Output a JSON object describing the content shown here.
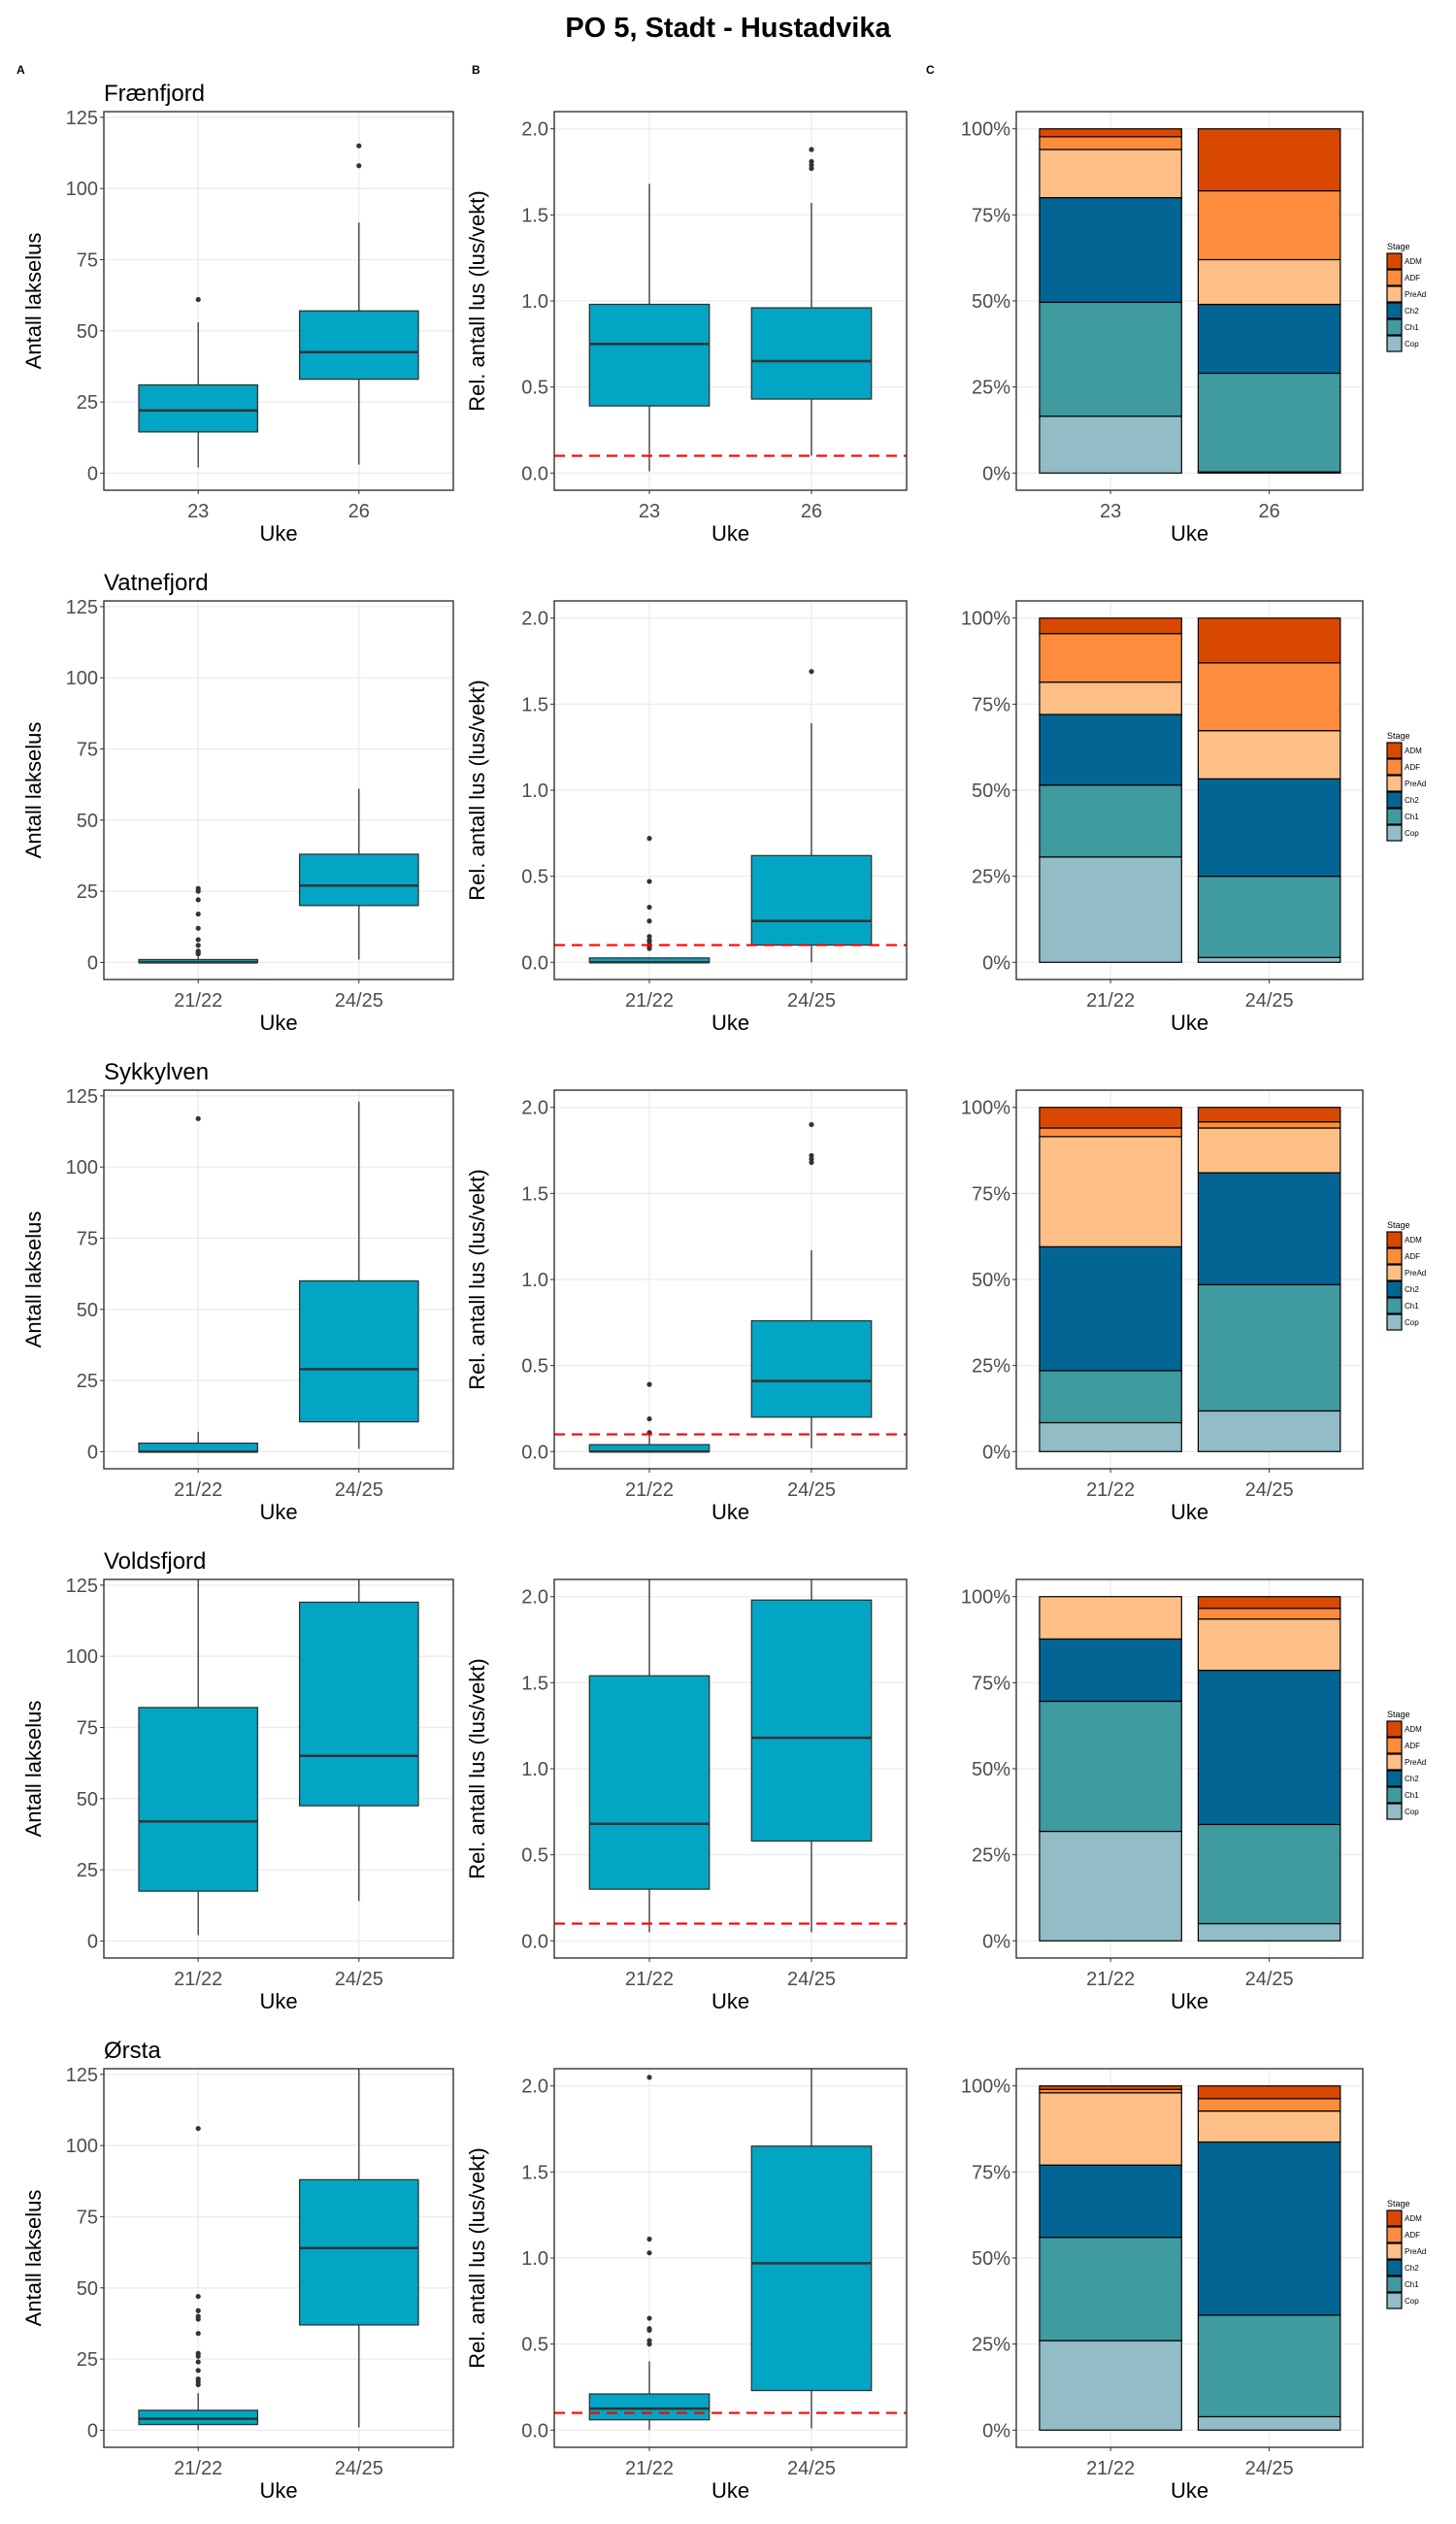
{
  "title": "PO 5, Stadt - Hustadvika",
  "panel_labels": [
    "A",
    "B",
    "C"
  ],
  "colors": {
    "box_fill": "#02a6c4",
    "box_line": "#333333",
    "threshold_line": "#ff0000",
    "grid": "#ebebeb",
    "stages": {
      "ADM": "#d94801",
      "ADF": "#fd8d3c",
      "PreAd": "#fdbf86",
      "Ch2": "#026594",
      "Ch1": "#3f9b9f",
      "Cop": "#92bdc6"
    }
  },
  "chart_data": {
    "type": "multi-panel",
    "xlabel": "Uke",
    "panel_A": {
      "type": "boxplot",
      "ylabel": "Antall lakselus",
      "ylim": [
        -6,
        127
      ],
      "yticks": [
        0,
        25,
        50,
        75,
        100,
        125
      ]
    },
    "panel_B": {
      "type": "boxplot",
      "ylabel": "Rel. antall lus (lus/vekt)",
      "ylim": [
        -0.1,
        2.1
      ],
      "yticks": [
        0.0,
        0.5,
        1.0,
        1.5,
        2.0
      ],
      "ytick_labels": [
        "0.0",
        "0.5",
        "1.0",
        "1.5",
        "2.0"
      ],
      "threshold": 0.1
    },
    "panel_C": {
      "type": "bar",
      "stacked": "percent",
      "yticks": [
        0,
        25,
        50,
        75,
        100
      ],
      "ytick_labels": [
        "0%",
        "25%",
        "50%",
        "75%",
        "100%"
      ],
      "legend": {
        "title": "Stage",
        "entries": [
          "ADM",
          "ADF",
          "PreAd",
          "Ch2",
          "Ch1",
          "Cop"
        ],
        "placement": "right"
      }
    },
    "sites": [
      {
        "name": "Frænfjord",
        "categories": [
          "23",
          "26"
        ],
        "counts": [
          {
            "min": 2,
            "q1": 14.5,
            "median": 22,
            "q3": 31,
            "max": 53,
            "outliers": [
              61
            ]
          },
          {
            "min": 3,
            "q1": 33,
            "median": 42.5,
            "q3": 57,
            "max": 88,
            "outliers": [
              108,
              115
            ]
          }
        ],
        "relative": [
          {
            "min": 0.01,
            "q1": 0.39,
            "median": 0.75,
            "q3": 0.98,
            "max": 1.68,
            "outliers": []
          },
          {
            "min": 0.1,
            "q1": 0.43,
            "median": 0.65,
            "q3": 0.96,
            "max": 1.57,
            "outliers": [
              1.77,
              1.79,
              1.81,
              1.88
            ]
          }
        ],
        "stages": [
          {
            "ADM": 2.3,
            "ADF": 3.7,
            "PreAd": 14,
            "Ch2": 30.4,
            "Ch1": 33.1,
            "Cop": 16.5
          },
          {
            "ADM": 18,
            "ADF": 20,
            "PreAd": 13,
            "Ch2": 20,
            "Ch1": 28.7,
            "Cop": 0.3
          }
        ]
      },
      {
        "name": "Vatnefjord",
        "categories": [
          "21/22",
          "24/25"
        ],
        "counts": [
          {
            "min": 0,
            "q1": 0,
            "median": 0,
            "q3": 1,
            "max": 2,
            "outliers": [
              3,
              3.5,
              4,
              6,
              8,
              12,
              17,
              22,
              25,
              26
            ]
          },
          {
            "min": 1,
            "q1": 20,
            "median": 27,
            "q3": 38,
            "max": 61,
            "outliers": []
          }
        ],
        "relative": [
          {
            "min": 0,
            "q1": 0,
            "median": 0,
            "q3": 0.025,
            "max": 0.03,
            "outliers": [
              0.08,
              0.09,
              0.1,
              0.12,
              0.13,
              0.15,
              0.24,
              0.32,
              0.47,
              0.72
            ]
          },
          {
            "min": 0,
            "q1": 0.1,
            "median": 0.24,
            "q3": 0.62,
            "max": 1.39,
            "outliers": [
              1.69
            ]
          }
        ],
        "stages": [
          {
            "ADM": 4.5,
            "ADF": 14.1,
            "PreAd": 9.4,
            "Ch2": 20.5,
            "Ch1": 20.9,
            "Cop": 30.6
          },
          {
            "ADM": 13,
            "ADF": 19.7,
            "PreAd": 14,
            "Ch2": 28.3,
            "Ch1": 23.6,
            "Cop": 1.4
          }
        ]
      },
      {
        "name": "Sykkylven",
        "categories": [
          "21/22",
          "24/25"
        ],
        "counts": [
          {
            "min": 0,
            "q1": 0,
            "median": 0,
            "q3": 3,
            "max": 7,
            "outliers": [
              117
            ]
          },
          {
            "min": 1,
            "q1": 10.5,
            "median": 29,
            "q3": 60,
            "max": 123,
            "outliers": []
          }
        ],
        "relative": [
          {
            "min": 0,
            "q1": 0,
            "median": 0,
            "q3": 0.04,
            "max": 0.1,
            "outliers": [
              0.11,
              0.19,
              0.39
            ]
          },
          {
            "min": 0.02,
            "q1": 0.2,
            "median": 0.41,
            "q3": 0.76,
            "max": 1.17,
            "outliers": [
              1.68,
              1.7,
              1.72,
              1.9
            ]
          }
        ],
        "stages": [
          {
            "ADM": 6,
            "ADF": 2.5,
            "PreAd": 32,
            "Ch2": 36,
            "Ch1": 15.1,
            "Cop": 8.4
          },
          {
            "ADM": 4.2,
            "ADF": 1.8,
            "PreAd": 13,
            "Ch2": 32.5,
            "Ch1": 36.7,
            "Cop": 11.8
          }
        ]
      },
      {
        "name": "Voldsfjord",
        "categories": [
          "21/22",
          "24/25"
        ],
        "counts": [
          {
            "min": 2,
            "q1": 17.5,
            "median": 42,
            "q3": 82,
            "max": 127,
            "outliers": []
          },
          {
            "min": 14,
            "q1": 47.5,
            "median": 65,
            "q3": 119,
            "max": 127,
            "outliers": []
          }
        ],
        "relative": [
          {
            "min": 0.05,
            "q1": 0.3,
            "median": 0.68,
            "q3": 1.54,
            "max": 2.1,
            "outliers": []
          },
          {
            "min": 0.05,
            "q1": 0.58,
            "median": 1.18,
            "q3": 1.98,
            "max": 2.1,
            "outliers": []
          }
        ],
        "stages": [
          {
            "ADM": 0,
            "ADF": 0,
            "PreAd": 12.3,
            "Ch2": 18.1,
            "Ch1": 37.8,
            "Cop": 31.8
          },
          {
            "ADM": 3.4,
            "ADF": 3.1,
            "PreAd": 14.9,
            "Ch2": 44.8,
            "Ch1": 28.8,
            "Cop": 5
          }
        ]
      },
      {
        "name": "Ørsta",
        "categories": [
          "21/22",
          "24/25"
        ],
        "counts": [
          {
            "min": 0,
            "q1": 2,
            "median": 4,
            "q3": 7,
            "max": 13,
            "outliers": [
              16,
              17,
              18,
              21,
              24,
              26,
              27,
              34,
              39,
              40,
              42,
              47,
              106
            ]
          },
          {
            "min": 1,
            "q1": 37,
            "median": 64,
            "q3": 88,
            "max": 127,
            "outliers": []
          }
        ],
        "relative": [
          {
            "min": 0,
            "q1": 0.06,
            "median": 0.125,
            "q3": 0.21,
            "max": 0.4,
            "outliers": [
              0.5,
              0.52,
              0.58,
              0.59,
              0.65,
              1.03,
              1.11,
              2.05
            ]
          },
          {
            "min": 0.01,
            "q1": 0.23,
            "median": 0.97,
            "q3": 1.65,
            "max": 2.1,
            "outliers": []
          }
        ],
        "stages": [
          {
            "ADM": 1,
            "ADF": 1,
            "PreAd": 21,
            "Ch2": 21,
            "Ch1": 30,
            "Cop": 26
          },
          {
            "ADM": 3.7,
            "ADF": 3.6,
            "PreAd": 9,
            "Ch2": 50.3,
            "Ch1": 29.5,
            "Cop": 3.9
          }
        ]
      }
    ]
  }
}
